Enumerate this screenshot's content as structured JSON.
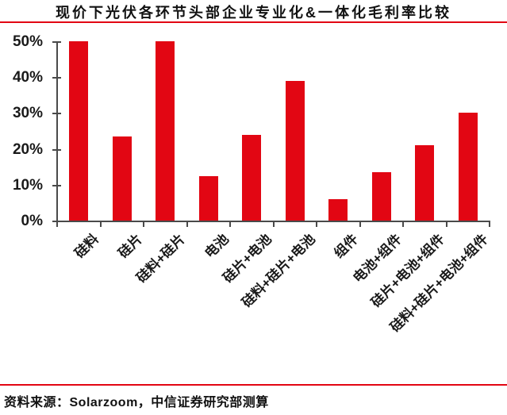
{
  "title": "现价下光伏各环节头部企业专业化&一体化毛利率比较",
  "source": "资料来源：Solarzoom，中信证券研究部测算",
  "colors": {
    "bar": "#E20613",
    "rule": "#E20613",
    "axis": "#4A4A4A",
    "text": "#1A1A1A"
  },
  "chart_data": {
    "type": "bar",
    "title": "现价下光伏各环节头部企业专业化&一体化毛利率比较",
    "categories": [
      "硅料",
      "硅片",
      "硅料+硅片",
      "电池",
      "硅片+电池",
      "硅料+硅片+电池",
      "组件",
      "电池+组件",
      "硅片+电池+组件",
      "硅料+硅片+电池+组件"
    ],
    "values": [
      50,
      23.5,
      50,
      12.5,
      24,
      39,
      6,
      13.5,
      21,
      30
    ],
    "unit": "%",
    "ylim": [
      0,
      50
    ],
    "yticks": [
      0,
      10,
      20,
      30,
      40,
      50
    ],
    "ytick_labels": [
      "0%",
      "10%",
      "20%",
      "30%",
      "40%",
      "50%"
    ],
    "grid": false,
    "legend": false,
    "x_label_rotation": 45,
    "bar_color": "#E20613"
  }
}
